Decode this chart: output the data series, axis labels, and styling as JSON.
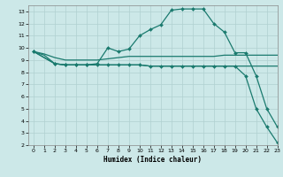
{
  "title": "",
  "xlabel": "Humidex (Indice chaleur)",
  "xlim": [
    -0.5,
    23
  ],
  "ylim": [
    2,
    13.5
  ],
  "xticks": [
    0,
    1,
    2,
    3,
    4,
    5,
    6,
    7,
    8,
    9,
    10,
    11,
    12,
    13,
    14,
    15,
    16,
    17,
    18,
    19,
    20,
    21,
    22,
    23
  ],
  "yticks": [
    2,
    3,
    4,
    5,
    6,
    7,
    8,
    9,
    10,
    11,
    12,
    13
  ],
  "bg_color": "#cce8e8",
  "line_color": "#1a7a6e",
  "grid_color": "#b0d0d0",
  "lines": [
    {
      "x": [
        0,
        1,
        2,
        3,
        4,
        5,
        6,
        7,
        8,
        9,
        10,
        11,
        12,
        13,
        14,
        15,
        16,
        17,
        18,
        19,
        20,
        21,
        22,
        23
      ],
      "y": [
        9.7,
        9.5,
        9.2,
        9.0,
        9.0,
        9.0,
        9.0,
        9.1,
        9.2,
        9.3,
        9.3,
        9.3,
        9.3,
        9.3,
        9.3,
        9.3,
        9.3,
        9.3,
        9.4,
        9.4,
        9.4,
        9.4,
        9.4,
        9.4
      ],
      "marker": false,
      "lw": 0.9
    },
    {
      "x": [
        0,
        1,
        2,
        3,
        4,
        5,
        6,
        7,
        8,
        9,
        10,
        11,
        12,
        13,
        14,
        15,
        16,
        17,
        18,
        19,
        20,
        21,
        22,
        23
      ],
      "y": [
        9.7,
        9.4,
        8.7,
        8.6,
        8.6,
        8.6,
        8.6,
        8.6,
        8.6,
        8.6,
        8.6,
        8.5,
        8.5,
        8.5,
        8.5,
        8.5,
        8.5,
        8.5,
        8.5,
        8.5,
        8.5,
        8.5,
        8.5,
        8.5
      ],
      "marker": false,
      "lw": 0.9
    },
    {
      "x": [
        0,
        2,
        3,
        4,
        5,
        6,
        7,
        8,
        9,
        10,
        11,
        12,
        13,
        14,
        15,
        16,
        17,
        18,
        19,
        20,
        21,
        22,
        23
      ],
      "y": [
        9.7,
        8.7,
        8.6,
        8.6,
        8.6,
        8.6,
        8.6,
        8.6,
        8.6,
        8.6,
        8.5,
        8.5,
        8.5,
        8.5,
        8.5,
        8.5,
        8.5,
        8.5,
        8.5,
        7.7,
        5.0,
        3.5,
        2.2
      ],
      "marker": true,
      "lw": 0.9
    },
    {
      "x": [
        0,
        2,
        3,
        4,
        5,
        6,
        7,
        8,
        9,
        10,
        11,
        12,
        13,
        14,
        15,
        16,
        17,
        18,
        19,
        20,
        21,
        22,
        23
      ],
      "y": [
        9.7,
        8.7,
        8.6,
        8.6,
        8.6,
        8.7,
        10.0,
        9.7,
        9.9,
        11.0,
        11.5,
        11.9,
        13.1,
        13.2,
        13.2,
        13.2,
        12.0,
        11.3,
        9.6,
        9.6,
        7.7,
        5.0,
        3.5
      ],
      "marker": true,
      "lw": 0.9
    }
  ]
}
